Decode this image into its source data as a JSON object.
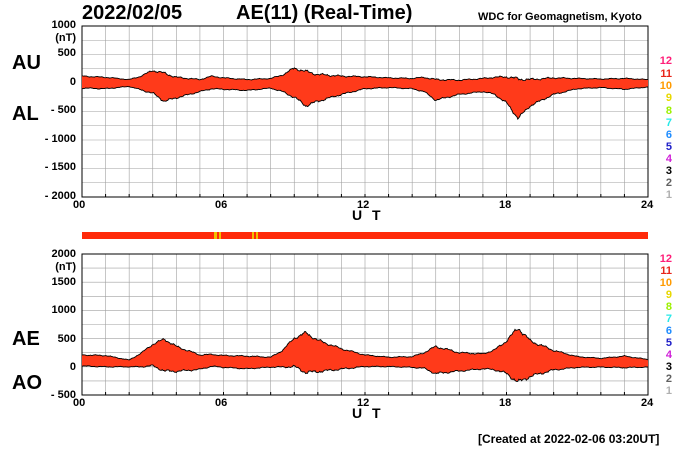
{
  "header": {
    "date": "2022/02/05",
    "title": "AE(11) (Real-Time)",
    "credit": "WDC for Geomagnetism, Kyoto",
    "created": "[Created at 2022-02-06 03:20UT]"
  },
  "legend": {
    "items": [
      "12",
      "11",
      "10",
      "9",
      "8",
      "7",
      "6",
      "5",
      "4",
      "3",
      "2",
      "1"
    ],
    "colors": [
      "#ff1e78",
      "#e8251a",
      "#ff9a00",
      "#e8d800",
      "#9cf000",
      "#28e8e8",
      "#1e8cff",
      "#2020c8",
      "#d020d8",
      "#000000",
      "#606060",
      "#b0b0b0"
    ]
  },
  "colors": {
    "fill": "#ff3a1a",
    "line": "#000000",
    "grid": "#a0a0a0",
    "station_bar": "#ff2a0a",
    "station_bar_alt": "#f0c000"
  },
  "chart_data": [
    {
      "type": "area",
      "name": "AU/AL",
      "series_labels": {
        "upper": "AU",
        "lower": "AL"
      },
      "units": "(nT)",
      "ylim": [
        -2000,
        1000
      ],
      "ytick_values": [
        1000,
        500,
        0,
        -500,
        -1000,
        -1500,
        -2000
      ],
      "ytick_labels": [
        "1000",
        "500",
        "0",
        "- 500",
        "- 1000",
        "- 1500",
        "- 2000"
      ],
      "xlim": [
        0,
        24
      ],
      "xtick_values": [
        0,
        6,
        12,
        18,
        24
      ],
      "xtick_labels": [
        "00",
        "06",
        "12",
        "18",
        "24"
      ],
      "xlabel": "U T",
      "x": [
        0,
        1,
        2,
        2.5,
        3,
        3.5,
        4,
        5,
        5.5,
        6,
        7,
        8,
        8.5,
        9,
        9.5,
        10,
        11,
        12,
        13,
        14,
        14.5,
        15,
        16,
        17,
        17.5,
        18,
        18.5,
        19,
        20,
        21,
        22,
        23,
        24
      ],
      "series": [
        {
          "name": "AU",
          "values": [
            120,
            100,
            60,
            120,
            220,
            170,
            100,
            60,
            120,
            90,
            60,
            80,
            140,
            260,
            200,
            150,
            120,
            110,
            90,
            80,
            100,
            60,
            50,
            80,
            100,
            110,
            70,
            60,
            90,
            80,
            70,
            80,
            60
          ]
        },
        {
          "name": "AL",
          "values": [
            -90,
            -100,
            -60,
            -120,
            -180,
            -320,
            -260,
            -150,
            -100,
            -110,
            -130,
            -90,
            -150,
            -250,
            -400,
            -320,
            -200,
            -100,
            -80,
            -100,
            -150,
            -300,
            -200,
            -150,
            -200,
            -350,
            -620,
            -400,
            -200,
            -100,
            -80,
            -110,
            -70
          ]
        }
      ]
    },
    {
      "type": "area",
      "name": "AE/AO",
      "series_labels": {
        "upper": "AE",
        "lower": "AO"
      },
      "units": "(nT)",
      "ylim": [
        -500,
        2000
      ],
      "ytick_values": [
        2000,
        1500,
        1000,
        500,
        0,
        -500
      ],
      "ytick_labels": [
        "2000",
        "1500",
        "1000",
        "500",
        "0",
        "- 500"
      ],
      "xlim": [
        0,
        24
      ],
      "xtick_values": [
        0,
        6,
        12,
        18,
        24
      ],
      "xtick_labels": [
        "00",
        "06",
        "12",
        "18",
        "24"
      ],
      "xlabel": "U T",
      "x": [
        0,
        1,
        2,
        2.5,
        3,
        3.5,
        4,
        5,
        5.5,
        6,
        7,
        8,
        8.5,
        9,
        9.5,
        10,
        11,
        12,
        13,
        14,
        14.5,
        15,
        16,
        17,
        17.5,
        18,
        18.5,
        19,
        20,
        21,
        22,
        23,
        24
      ],
      "series": [
        {
          "name": "AE",
          "values": [
            210,
            200,
            120,
            240,
            400,
            490,
            360,
            210,
            220,
            200,
            190,
            170,
            290,
            510,
            600,
            470,
            320,
            210,
            170,
            180,
            250,
            360,
            250,
            230,
            300,
            460,
            690,
            460,
            290,
            180,
            150,
            190,
            130
          ]
        },
        {
          "name": "AO",
          "values": [
            15,
            0,
            0,
            0,
            20,
            -75,
            -80,
            -45,
            10,
            -10,
            -35,
            -5,
            -5,
            5,
            -100,
            -85,
            -40,
            5,
            5,
            -10,
            -25,
            -120,
            -75,
            -35,
            -50,
            -120,
            -275,
            -170,
            -55,
            -10,
            -5,
            -15,
            -5
          ]
        }
      ]
    }
  ]
}
